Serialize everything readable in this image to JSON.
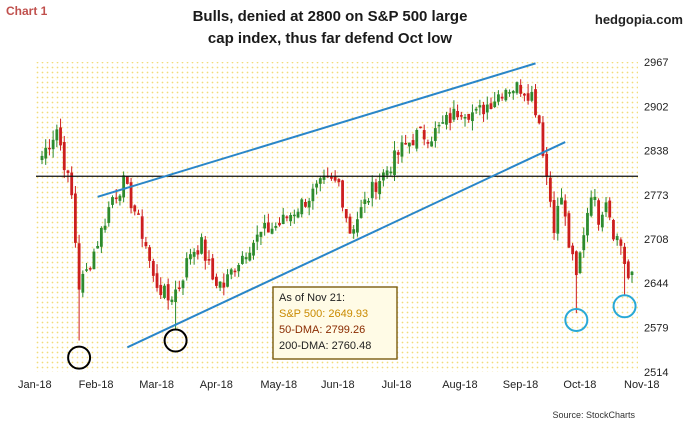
{
  "header": {
    "chart_label": "Chart 1",
    "title_line1": "Bulls, denied at 2800 on S&P 500 large",
    "title_line2": "cap index, thus far defend Oct low",
    "brand": "hedgopia.com",
    "source": "Source: StockCharts"
  },
  "colors": {
    "up": "#2e8b2e",
    "down": "#cc1f1f",
    "channel": "#2a86c8",
    "resistance": "#111111",
    "info_border": "#7a5c10",
    "info_fill": "#fffbe6",
    "dot_grid": "#f2dc7a",
    "circle_black": "#000000",
    "circle_blue": "#29a8d6"
  },
  "chart_data": {
    "type": "candlestick",
    "y_ticks": [
      "2967",
      "2902",
      "2838",
      "2773",
      "2708",
      "2644",
      "2579",
      "2514"
    ],
    "y_tick_values": [
      2967,
      2902,
      2838,
      2773,
      2708,
      2644,
      2579,
      2514
    ],
    "ylim": [
      2514,
      2967
    ],
    "x_ticks": [
      "Jan-18",
      "Feb-18",
      "Mar-18",
      "Apr-18",
      "May-18",
      "Jun-18",
      "Jul-18",
      "Aug-18",
      "Sep-18",
      "Oct-18",
      "Nov-18"
    ],
    "resistance_level": 2800,
    "anchors": [
      [
        0,
        2830
      ],
      [
        4,
        2870
      ],
      [
        8,
        2770
      ],
      [
        10,
        2640
      ],
      [
        12,
        2660
      ],
      [
        16,
        2720
      ],
      [
        19,
        2770
      ],
      [
        22,
        2790
      ],
      [
        25,
        2750
      ],
      [
        28,
        2700
      ],
      [
        30,
        2650
      ],
      [
        34,
        2620
      ],
      [
        37,
        2640
      ],
      [
        40,
        2690
      ],
      [
        43,
        2700
      ],
      [
        46,
        2650
      ],
      [
        49,
        2640
      ],
      [
        52,
        2670
      ],
      [
        56,
        2700
      ],
      [
        60,
        2720
      ],
      [
        64,
        2730
      ],
      [
        68,
        2750
      ],
      [
        72,
        2770
      ],
      [
        76,
        2790
      ],
      [
        80,
        2790
      ],
      [
        83,
        2720
      ],
      [
        86,
        2750
      ],
      [
        90,
        2790
      ],
      [
        93,
        2810
      ],
      [
        97,
        2840
      ],
      [
        101,
        2860
      ],
      [
        105,
        2860
      ],
      [
        109,
        2880
      ],
      [
        113,
        2900
      ],
      [
        117,
        2890
      ],
      [
        121,
        2910
      ],
      [
        125,
        2930
      ],
      [
        129,
        2930
      ],
      [
        132,
        2920
      ],
      [
        134,
        2880
      ],
      [
        136,
        2800
      ],
      [
        138,
        2730
      ],
      [
        140,
        2770
      ],
      [
        142,
        2700
      ],
      [
        144,
        2650
      ],
      [
        146,
        2720
      ],
      [
        148,
        2780
      ],
      [
        150,
        2740
      ],
      [
        152,
        2770
      ],
      [
        154,
        2720
      ],
      [
        156,
        2700
      ],
      [
        158,
        2650
      ]
    ],
    "channel": {
      "upper": {
        "from": [
          15,
          2770
        ],
        "to": [
          133,
          2965
        ]
      },
      "lower": {
        "from": [
          23,
          2550
        ],
        "to": [
          141,
          2850
        ]
      }
    },
    "circles_black": [
      {
        "index": 10,
        "value": 2535
      },
      {
        "index": 36,
        "value": 2560
      }
    ],
    "circles_blue": [
      {
        "index": 144,
        "value": 2590
      },
      {
        "index": 157,
        "value": 2610
      }
    ],
    "info_box": {
      "title": "As of Nov 21:",
      "sp500": "S&P 500: 2649.93",
      "dma50": "50-DMA: 2799.26",
      "dma200": "200-DMA: 2760.48"
    }
  }
}
